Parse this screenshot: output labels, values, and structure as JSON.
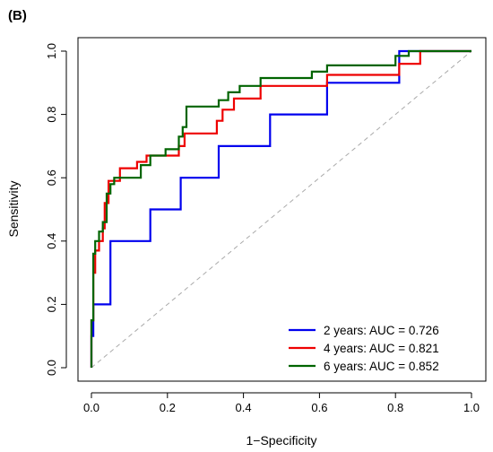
{
  "chart_data": {
    "type": "line",
    "panel_label": "(B)",
    "xlabel": "1−Specificity",
    "ylabel": "Sensitivity",
    "xlim": [
      0,
      1
    ],
    "ylim": [
      0,
      1
    ],
    "x_ticks": [
      "0.0",
      "0.2",
      "0.4",
      "0.6",
      "0.8",
      "1.0"
    ],
    "y_ticks": [
      "0.0",
      "0.2",
      "0.4",
      "0.6",
      "0.8",
      "1.0"
    ],
    "x_tick_values": [
      0,
      0.2,
      0.4,
      0.6,
      0.8,
      1.0
    ],
    "y_tick_values": [
      0,
      0.2,
      0.4,
      0.6,
      0.8,
      1.0
    ],
    "grid": false,
    "legend_position": "bottom-right",
    "reference_line": {
      "from": [
        0,
        0
      ],
      "to": [
        1,
        1
      ],
      "style": "dashed",
      "color": "#aaaaaa"
    },
    "series": [
      {
        "name": "2 years: AUC = 0.726",
        "color": "#0000ee",
        "x": [
          0,
          0,
          0.005,
          0.005,
          0.05,
          0.05,
          0.155,
          0.155,
          0.235,
          0.235,
          0.335,
          0.335,
          0.47,
          0.47,
          0.62,
          0.62,
          0.81,
          0.81,
          0.835,
          0.835,
          1.0
        ],
        "y": [
          0,
          0.1,
          0.1,
          0.2,
          0.2,
          0.4,
          0.4,
          0.5,
          0.5,
          0.6,
          0.6,
          0.7,
          0.7,
          0.8,
          0.8,
          0.9,
          0.9,
          1.0,
          1.0,
          1.0,
          1.0
        ]
      },
      {
        "name": "4 years: AUC = 0.821",
        "color": "#ee0000",
        "x": [
          0,
          0,
          0.005,
          0.005,
          0.01,
          0.01,
          0.02,
          0.02,
          0.03,
          0.03,
          0.035,
          0.035,
          0.045,
          0.045,
          0.075,
          0.075,
          0.12,
          0.12,
          0.145,
          0.145,
          0.165,
          0.165,
          0.23,
          0.23,
          0.245,
          0.245,
          0.33,
          0.33,
          0.345,
          0.345,
          0.375,
          0.375,
          0.405,
          0.405,
          0.445,
          0.445,
          0.62,
          0.62,
          0.81,
          0.81,
          0.865,
          0.865,
          1.0
        ],
        "y": [
          0,
          0.15,
          0.15,
          0.3,
          0.3,
          0.37,
          0.37,
          0.4,
          0.4,
          0.44,
          0.44,
          0.52,
          0.52,
          0.59,
          0.59,
          0.63,
          0.63,
          0.65,
          0.65,
          0.67,
          0.67,
          0.67,
          0.67,
          0.7,
          0.7,
          0.74,
          0.74,
          0.78,
          0.78,
          0.815,
          0.815,
          0.85,
          0.85,
          0.85,
          0.85,
          0.89,
          0.89,
          0.925,
          0.925,
          0.96,
          0.96,
          1.0,
          1.0
        ]
      },
      {
        "name": "6 years: AUC = 0.852",
        "color": "#006400",
        "x": [
          0,
          0,
          0.005,
          0.005,
          0.01,
          0.01,
          0.02,
          0.02,
          0.03,
          0.03,
          0.04,
          0.04,
          0.05,
          0.05,
          0.06,
          0.06,
          0.09,
          0.09,
          0.13,
          0.13,
          0.155,
          0.155,
          0.195,
          0.195,
          0.23,
          0.23,
          0.24,
          0.24,
          0.25,
          0.25,
          0.335,
          0.335,
          0.36,
          0.36,
          0.39,
          0.39,
          0.445,
          0.445,
          0.58,
          0.58,
          0.62,
          0.62,
          0.8,
          0.8,
          0.835,
          0.835,
          1.0
        ],
        "y": [
          0,
          0.15,
          0.15,
          0.36,
          0.36,
          0.4,
          0.4,
          0.43,
          0.43,
          0.46,
          0.46,
          0.55,
          0.55,
          0.58,
          0.58,
          0.6,
          0.6,
          0.6,
          0.6,
          0.64,
          0.64,
          0.67,
          0.67,
          0.69,
          0.69,
          0.73,
          0.73,
          0.76,
          0.76,
          0.825,
          0.825,
          0.845,
          0.845,
          0.87,
          0.87,
          0.89,
          0.89,
          0.915,
          0.915,
          0.935,
          0.935,
          0.955,
          0.955,
          0.985,
          0.985,
          1.0,
          1.0
        ]
      }
    ]
  }
}
